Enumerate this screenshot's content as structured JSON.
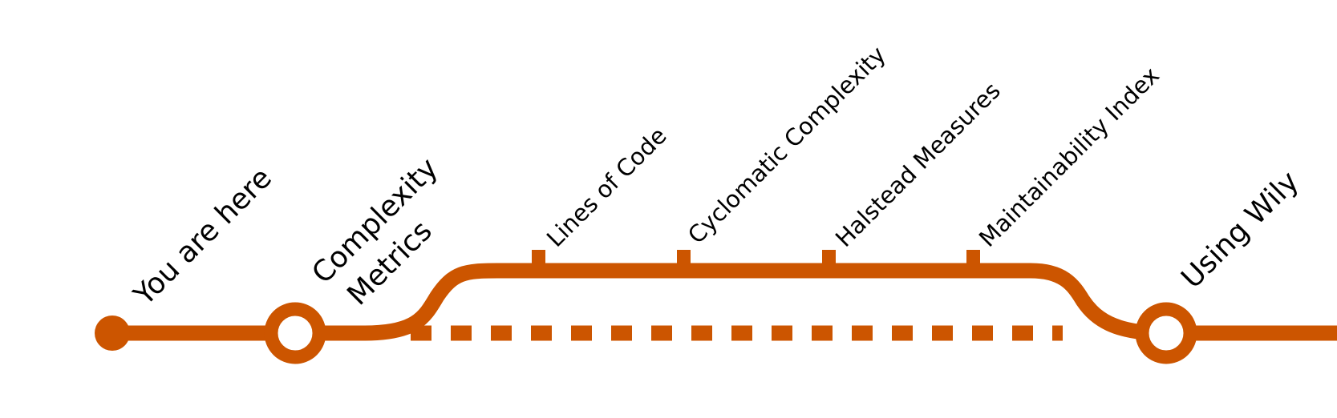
{
  "colors": {
    "line": "#cc5500",
    "background": "#ffffff",
    "text": "#000000"
  },
  "stations": {
    "start": {
      "label": "You are here"
    },
    "complexity": {
      "label_line1": "Complexity",
      "label_line2": "Metrics"
    },
    "using_wily": {
      "label": "Using Wily"
    }
  },
  "branch_stops": [
    {
      "label": "Lines of Code"
    },
    {
      "label": "Cyclomatic Complexity"
    },
    {
      "label": "Halstead Measures"
    },
    {
      "label": "Maintainability Index"
    }
  ]
}
